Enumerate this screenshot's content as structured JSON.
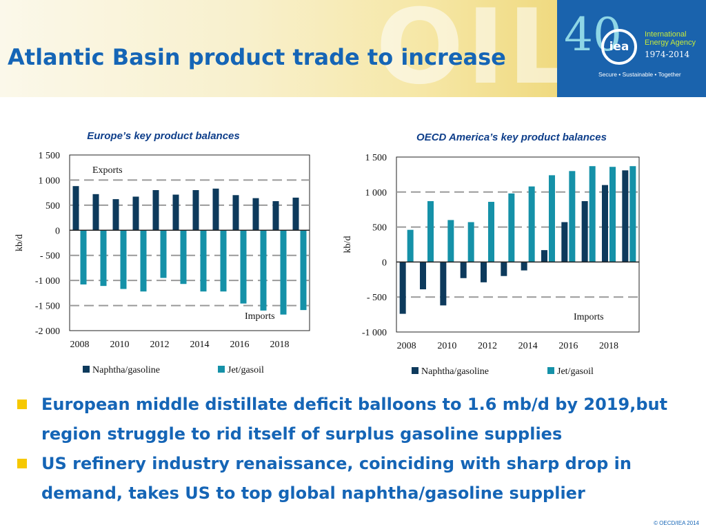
{
  "slide": {
    "title": "Atlantic Basin product trade to increase",
    "watermark": "OIL",
    "copyright": "© OECD/IEA 2014"
  },
  "logo": {
    "number": "40",
    "acronym": "iea",
    "line1": "International",
    "line2": "Energy Agency",
    "years": "1974-2014",
    "tagline": "Secure • Sustainable • Together"
  },
  "bullets": [
    "European middle distillate deficit balloons to 1.6 mb/d by 2019,but region struggle to rid itself of surplus gasoline supplies",
    "US refinery industry renaissance, coinciding with sharp drop in demand, takes US to top global naphtha/gasoline supplier"
  ],
  "colors": {
    "naphtha": "#0d3a5c",
    "jet": "#1591a8",
    "accent": "#1565b6",
    "bullet": "#f6c800"
  },
  "chart_data": [
    {
      "type": "bar",
      "title": "Europe’s key  product balances",
      "ylabel": "kb/d",
      "ylim": [
        -2000,
        1500
      ],
      "yticks": [
        1500,
        1000,
        500,
        0,
        -500,
        -1000,
        -1500,
        -2000
      ],
      "ytick_labels": [
        "1 500",
        "1 000",
        "500",
        "0",
        "- 500",
        "-1 000",
        "-1 500",
        "-2 000"
      ],
      "x": [
        2008,
        2009,
        2010,
        2011,
        2012,
        2013,
        2014,
        2015,
        2016,
        2017,
        2018,
        2019
      ],
      "xtick_labels": [
        "2008",
        "2010",
        "2012",
        "2014",
        "2016",
        "2018"
      ],
      "annotations": {
        "top": "Exports",
        "bottom": "Imports"
      },
      "legend": "bottom",
      "gridlines": "dashed",
      "series": [
        {
          "name": "Naphtha/gasoline",
          "color": "#0d3a5c",
          "values": [
            880,
            720,
            620,
            670,
            800,
            710,
            800,
            830,
            700,
            640,
            580,
            650
          ]
        },
        {
          "name": "Jet/gasoil",
          "color": "#1591a8",
          "values": [
            -1080,
            -1110,
            -1170,
            -1220,
            -950,
            -1070,
            -1220,
            -1220,
            -1460,
            -1600,
            -1680,
            -1590
          ]
        }
      ]
    },
    {
      "type": "bar",
      "title": "OECD America’s key  product balances",
      "ylabel": "kb/d",
      "ylim": [
        -1000,
        1500
      ],
      "yticks": [
        1500,
        1000,
        500,
        0,
        -500,
        -1000
      ],
      "ytick_labels": [
        "1 500",
        "1 000",
        "500",
        "0",
        "- 500",
        "-1 000"
      ],
      "x": [
        2008,
        2009,
        2010,
        2011,
        2012,
        2013,
        2014,
        2015,
        2016,
        2017,
        2018,
        2019
      ],
      "xtick_labels": [
        "2008",
        "2010",
        "2012",
        "2014",
        "2016",
        "2018"
      ],
      "annotations": {
        "bottom": "Imports"
      },
      "legend": "bottom",
      "gridlines": "dashed",
      "series": [
        {
          "name": "Naphtha/gasoline",
          "color": "#0d3a5c",
          "values": [
            -740,
            -390,
            -620,
            -230,
            -290,
            -200,
            -120,
            170,
            570,
            870,
            1100,
            1310
          ]
        },
        {
          "name": "Jet/gasoil",
          "color": "#1591a8",
          "values": [
            460,
            870,
            600,
            570,
            860,
            980,
            1080,
            1240,
            1300,
            1370,
            1360,
            1370
          ]
        }
      ]
    }
  ]
}
